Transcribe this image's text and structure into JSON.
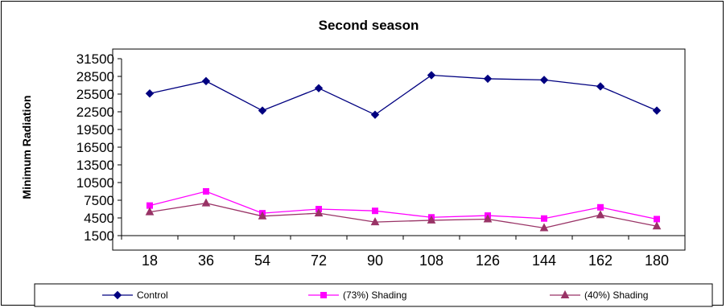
{
  "chart_data": {
    "type": "line",
    "title": "Second season",
    "xlabel": "",
    "ylabel": "Minimum Radiation",
    "x": [
      18,
      36,
      54,
      72,
      90,
      108,
      126,
      144,
      162,
      180
    ],
    "x_tick_labels": [
      "18",
      "36",
      "54",
      "72",
      "90",
      "108",
      "126",
      "144",
      "162",
      "180"
    ],
    "ylim": [
      1500,
      31500
    ],
    "y_ticks": [
      1500,
      4500,
      7500,
      10500,
      13500,
      16500,
      19500,
      22500,
      25500,
      28500,
      31500
    ],
    "y_tick_labels": [
      "1500",
      "4500",
      "7500",
      "10500",
      "13500",
      "16500",
      "19500",
      "22500",
      "25500",
      "28500",
      "31500"
    ],
    "grid": false,
    "legend_position": "bottom",
    "series": [
      {
        "name": "Control",
        "color": "#000080",
        "marker": "diamond",
        "values": [
          25600,
          27700,
          22700,
          26500,
          22000,
          28700,
          28100,
          27900,
          26800,
          22700
        ]
      },
      {
        "name": "(73%) Shading",
        "color": "#FF00FF",
        "marker": "square",
        "values": [
          6600,
          9000,
          5300,
          6000,
          5700,
          4600,
          4900,
          4400,
          6300,
          4300
        ]
      },
      {
        "name": "(40%) Shading",
        "color": "#993366",
        "marker": "triangle",
        "values": [
          5500,
          7000,
          4800,
          5300,
          3800,
          4100,
          4300,
          2800,
          5000,
          3100
        ]
      }
    ]
  }
}
